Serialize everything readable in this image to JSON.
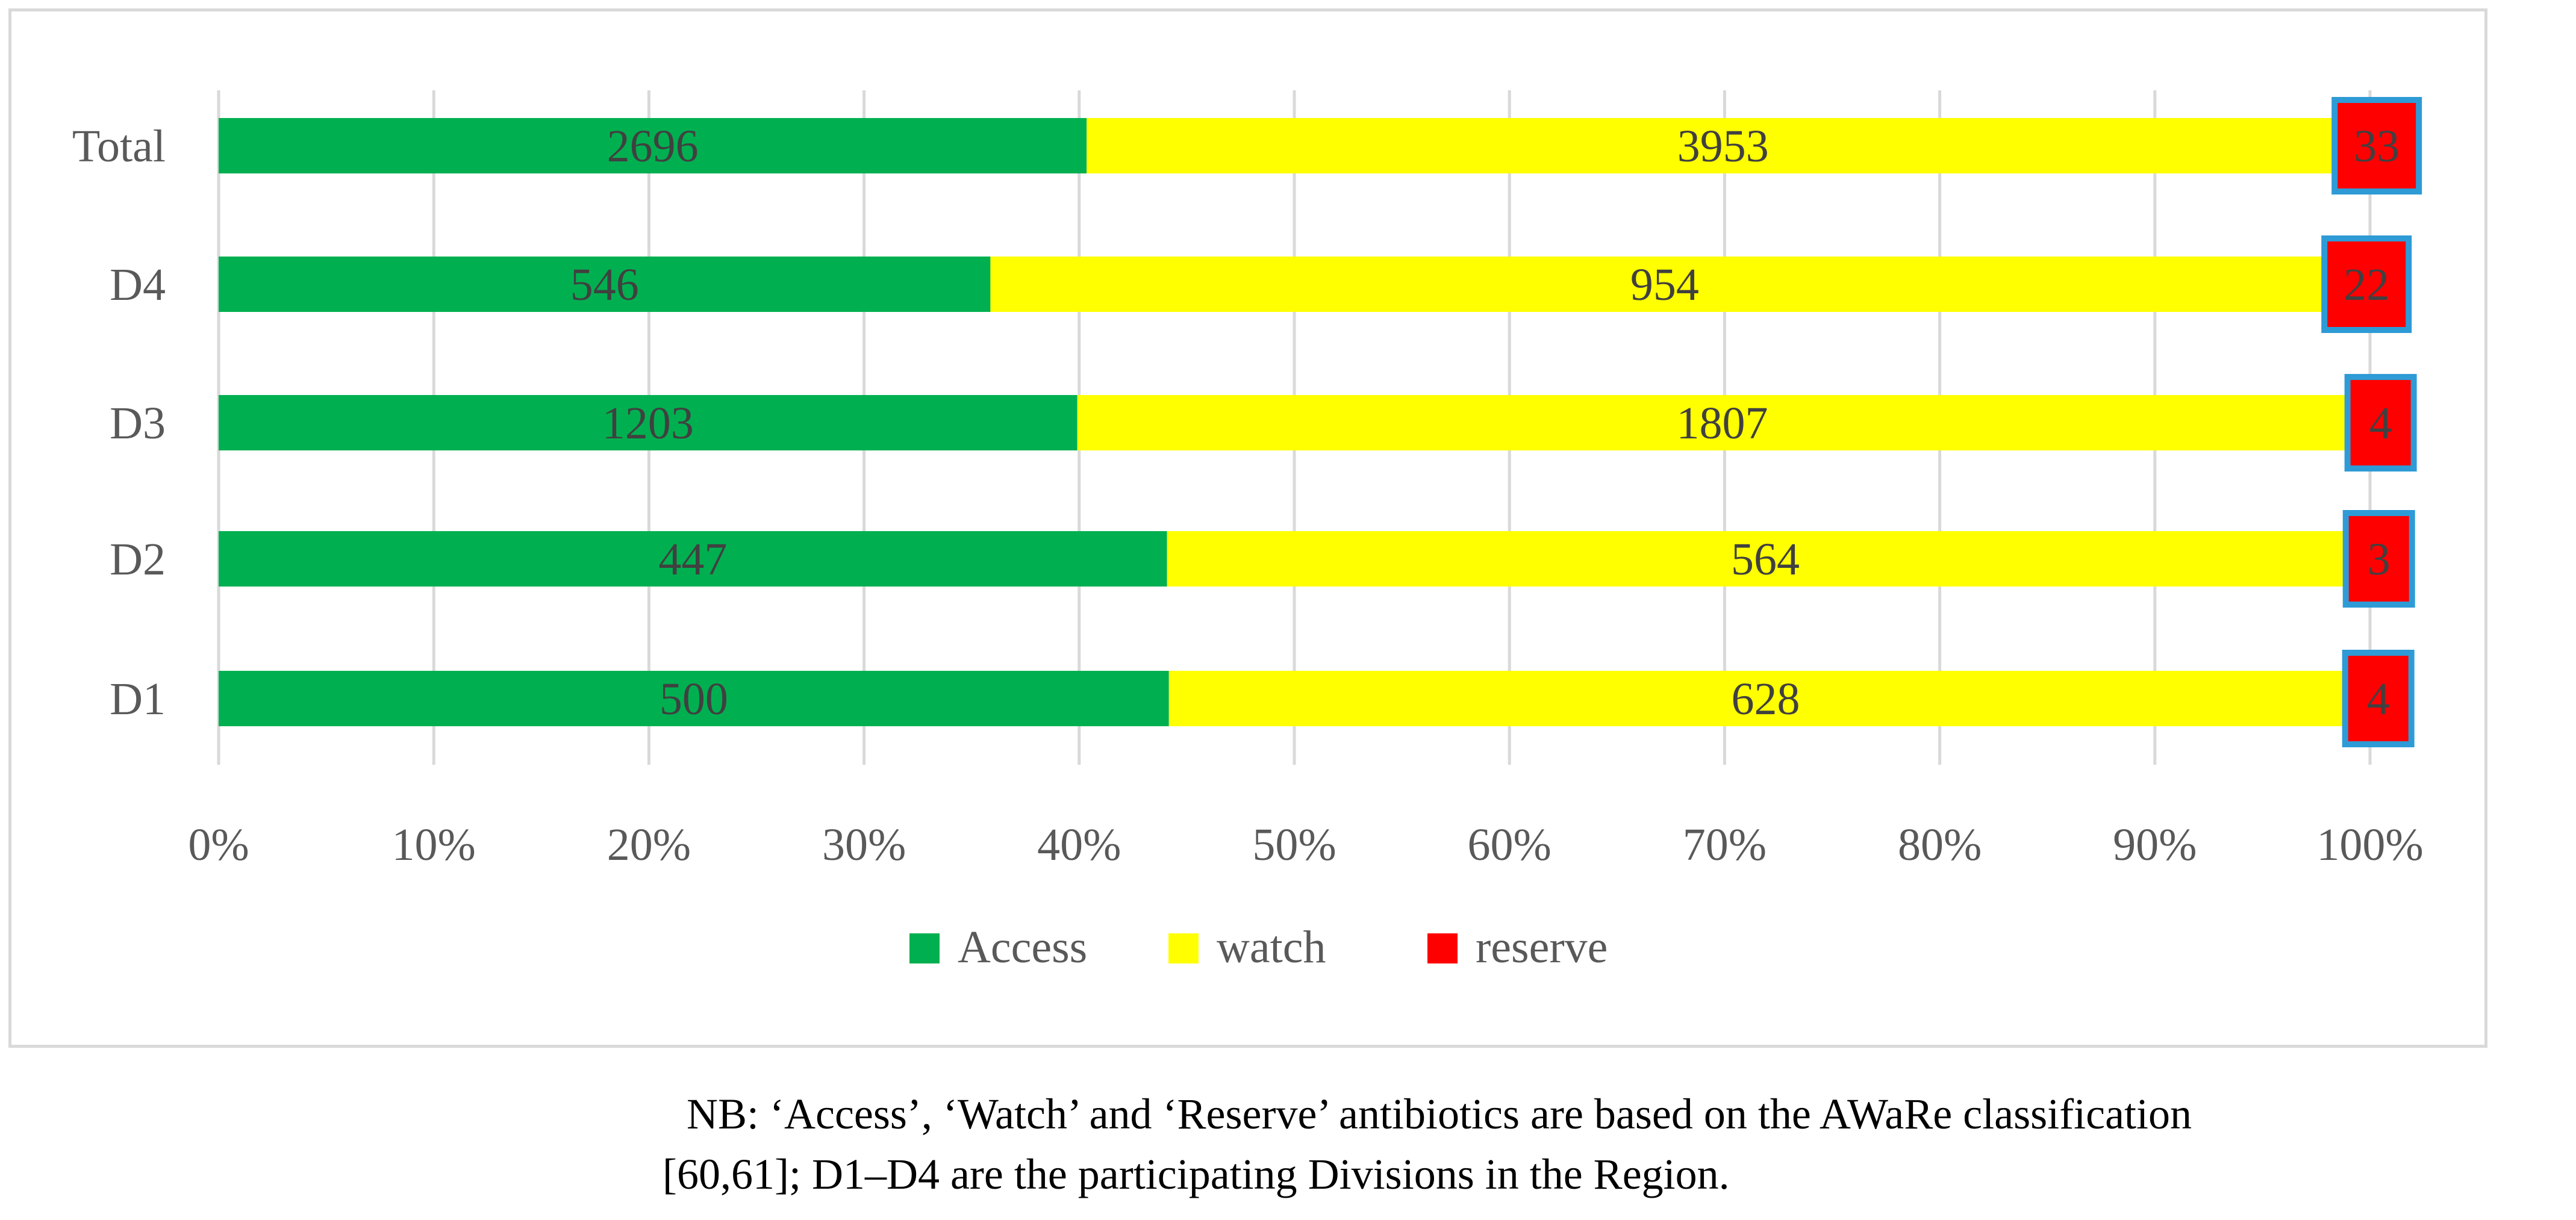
{
  "chart_data": {
    "type": "bar",
    "orientation": "horizontal",
    "stacked": "percent",
    "categories": [
      "Total",
      "D4",
      "D3",
      "D2",
      "D1"
    ],
    "series": [
      {
        "name": "Access",
        "color": "#00b050",
        "values": [
          2696,
          546,
          1203,
          447,
          500
        ]
      },
      {
        "name": "watch",
        "color": "#ffff00",
        "values": [
          3953,
          954,
          1807,
          564,
          628
        ]
      },
      {
        "name": "reserve",
        "color": "#ff0000",
        "values": [
          33,
          22,
          4,
          3,
          4
        ]
      }
    ],
    "xlim": [
      0,
      100
    ],
    "xticks": [
      "0%",
      "10%",
      "20%",
      "30%",
      "40%",
      "50%",
      "60%",
      "70%",
      "80%",
      "90%",
      "100%"
    ],
    "grid": true,
    "legend": "bottom",
    "title": "",
    "xlabel": "",
    "ylabel": ""
  },
  "note": {
    "line1": "NB: ‘Access’, ‘Watch’ and ‘Reserve’ antibiotics are based on the AWaRe classification",
    "line2": "[60,61]; D1–D4 are the participating Divisions in the Region."
  }
}
